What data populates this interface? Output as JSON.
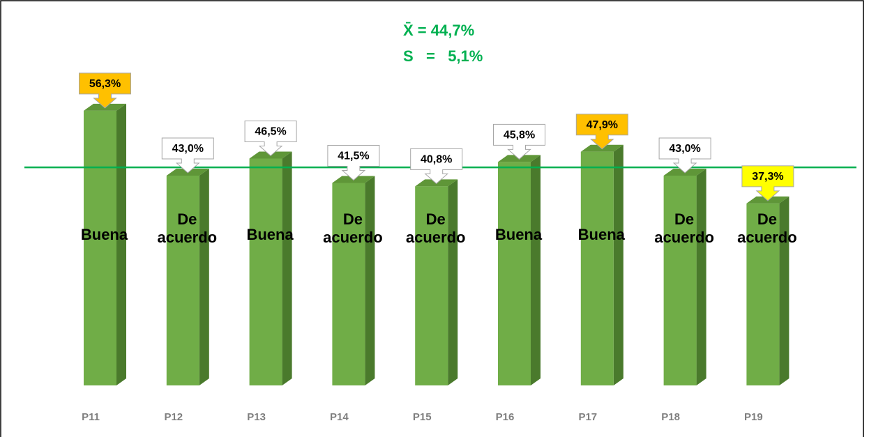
{
  "chart_data": {
    "type": "bar3d",
    "annotations": [
      "X̄ = 44,7%",
      "S   =   5,1%"
    ],
    "categories": [
      "P11",
      "P12",
      "P13",
      "P14",
      "P15",
      "P16",
      "P17",
      "P18",
      "P19"
    ],
    "values": [
      56.3,
      43.0,
      46.5,
      41.5,
      40.8,
      45.8,
      47.9,
      43.0,
      37.3
    ],
    "value_labels": [
      "56,3%",
      "43,0%",
      "46,5%",
      "41,5%",
      "40,8%",
      "45,8%",
      "47,9%",
      "43,0%",
      "37,3%"
    ],
    "label_colors": [
      "#ffc000",
      "#ffffff",
      "#ffffff",
      "#ffffff",
      "#ffffff",
      "#ffffff",
      "#ffc000",
      "#ffffff",
      "#ffff00"
    ],
    "bar_labels": [
      [
        "Buena"
      ],
      [
        "De",
        "acuerdo"
      ],
      [
        "Buena"
      ],
      [
        "De",
        "acuerdo"
      ],
      [
        "De",
        "acuerdo"
      ],
      [
        "Buena"
      ],
      [
        "Buena"
      ],
      [
        "De",
        "acuerdo"
      ],
      [
        "De",
        "acuerdo"
      ]
    ],
    "color": "#70ad47",
    "reference_line": {
      "value": 44.7,
      "color": "#00b050"
    },
    "ylim": [
      0,
      70
    ]
  }
}
